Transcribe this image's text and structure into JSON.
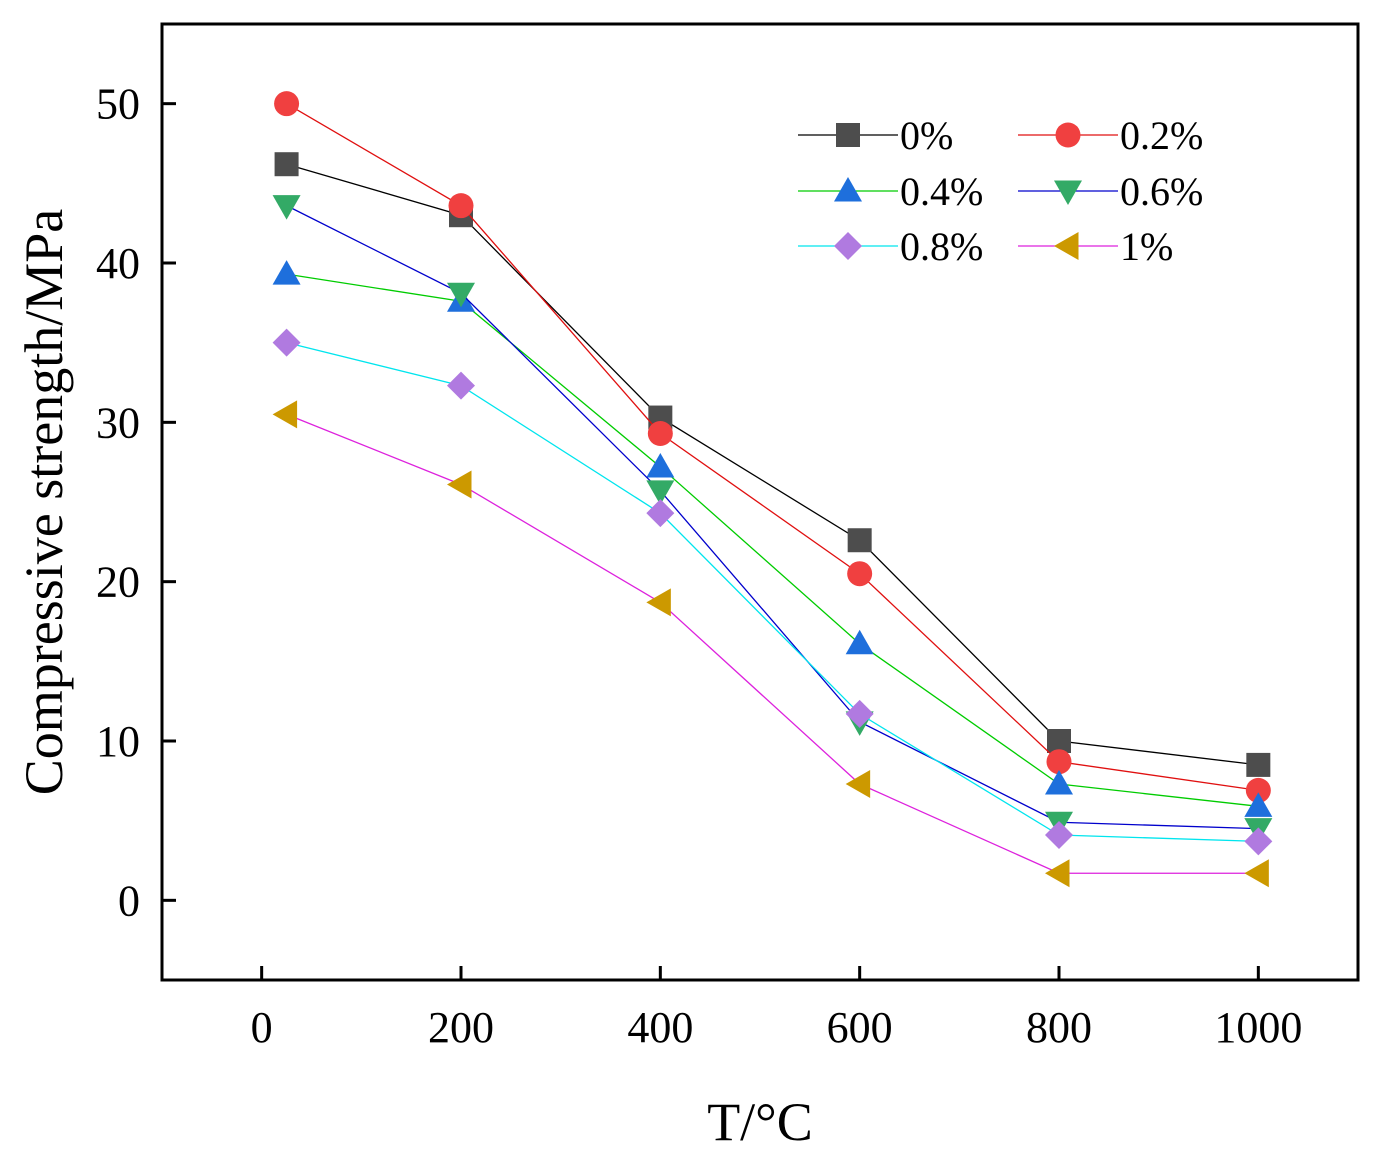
{
  "chart_data": {
    "type": "line",
    "title": "",
    "xlabel": "T/°C",
    "ylabel": "Compressive strength/MPa",
    "xlim": [
      -100,
      1100
    ],
    "ylim": [
      -5,
      55
    ],
    "xticks": [
      0,
      200,
      400,
      600,
      800,
      1000
    ],
    "yticks": [
      0,
      10,
      20,
      30,
      40,
      50
    ],
    "x": [
      25,
      200,
      400,
      600,
      800,
      1000
    ],
    "legend_position": "top-right",
    "series": [
      {
        "name": "0%",
        "color": "#4d4d4d",
        "line_color": "#000000",
        "marker": "square",
        "values": [
          46.2,
          43.0,
          30.3,
          22.6,
          10.0,
          8.5
        ]
      },
      {
        "name": "0.2%",
        "color": "#f04040",
        "line_color": "#e01010",
        "marker": "circle",
        "values": [
          50.0,
          43.6,
          29.3,
          20.5,
          8.7,
          6.9
        ]
      },
      {
        "name": "0.4%",
        "color": "#1e6fdc",
        "line_color": "#00cc00",
        "marker": "triangle-up",
        "values": [
          39.3,
          37.6,
          27.2,
          16.1,
          7.3,
          5.9
        ]
      },
      {
        "name": "0.6%",
        "color": "#33aa66",
        "line_color": "#0000cc",
        "marker": "triangle-down",
        "values": [
          43.6,
          38.1,
          25.7,
          11.2,
          4.9,
          4.5
        ]
      },
      {
        "name": "0.8%",
        "color": "#b07ae0",
        "line_color": "#00e5ee",
        "marker": "diamond",
        "values": [
          35.0,
          32.3,
          24.3,
          11.7,
          4.1,
          3.7
        ]
      },
      {
        "name": "1%",
        "color": "#cc9900",
        "line_color": "#dd22dd",
        "marker": "triangle-left",
        "values": [
          30.5,
          26.1,
          18.7,
          7.3,
          1.7,
          1.7
        ]
      }
    ]
  }
}
